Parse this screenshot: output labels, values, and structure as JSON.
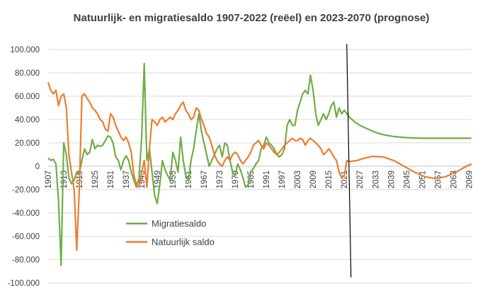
{
  "chart_data": {
    "type": "line",
    "title": "Natuurlijk- en migratiesaldo  1907-2022 (reëel) en 2023-2070 (prognose)",
    "xlabel": "",
    "ylabel": "",
    "ylim": [
      -100000,
      100000
    ],
    "y_ticks": [
      "100.000",
      "80.000",
      "60.000",
      "40.000",
      "20.000",
      "0",
      "-20.000",
      "-40.000",
      "-60.000",
      "-80.000",
      "-100.000"
    ],
    "x_ticks": [
      "1907",
      "1913",
      "1919",
      "1925",
      "1931",
      "1937",
      "1943",
      "1949",
      "1955",
      "1961",
      "1967",
      "1973",
      "1979",
      "1985",
      "1991",
      "1997",
      "2003",
      "2009",
      "2015",
      "2021",
      "2027",
      "2033",
      "2039",
      "2045",
      "2051",
      "2057",
      "2063",
      "2069"
    ],
    "x_range": [
      1907,
      2070
    ],
    "forecast_divider_year": 2022.5,
    "legend_position": "lower-left",
    "grid": "horizontal",
    "series": [
      {
        "name": "Migratiesaldo",
        "color": "#70ad47",
        "points": [
          [
            1907,
            7000
          ],
          [
            1908,
            5000
          ],
          [
            1909,
            6000
          ],
          [
            1910,
            2000
          ],
          [
            1911,
            -30000
          ],
          [
            1912,
            -85000
          ],
          [
            1913,
            20000
          ],
          [
            1914,
            10000
          ],
          [
            1915,
            -10000
          ],
          [
            1916,
            -15000
          ],
          [
            1917,
            -12000
          ],
          [
            1918,
            -5000
          ],
          [
            1919,
            -6000
          ],
          [
            1920,
            5000
          ],
          [
            1921,
            15000
          ],
          [
            1922,
            10000
          ],
          [
            1923,
            12000
          ],
          [
            1924,
            23000
          ],
          [
            1925,
            15000
          ],
          [
            1926,
            18000
          ],
          [
            1927,
            17000
          ],
          [
            1928,
            18000
          ],
          [
            1929,
            22000
          ],
          [
            1930,
            26000
          ],
          [
            1931,
            25000
          ],
          [
            1932,
            20000
          ],
          [
            1933,
            8000
          ],
          [
            1934,
            5000
          ],
          [
            1935,
            -3000
          ],
          [
            1936,
            5000
          ],
          [
            1937,
            9000
          ],
          [
            1938,
            5000
          ],
          [
            1939,
            -5000
          ],
          [
            1940,
            -12000
          ],
          [
            1941,
            -18000
          ],
          [
            1942,
            -10000
          ],
          [
            1943,
            25000
          ],
          [
            1944,
            88000
          ],
          [
            1945,
            5000
          ],
          [
            1946,
            15000
          ],
          [
            1947,
            -5000
          ],
          [
            1948,
            -25000
          ],
          [
            1949,
            -32000
          ],
          [
            1950,
            -15000
          ],
          [
            1951,
            5000
          ],
          [
            1952,
            -3000
          ],
          [
            1953,
            -8000
          ],
          [
            1954,
            -12000
          ],
          [
            1955,
            12000
          ],
          [
            1956,
            5000
          ],
          [
            1957,
            -5000
          ],
          [
            1958,
            25000
          ],
          [
            1959,
            5000
          ],
          [
            1960,
            -8000
          ],
          [
            1961,
            -12000
          ],
          [
            1962,
            5000
          ],
          [
            1963,
            15000
          ],
          [
            1964,
            30000
          ],
          [
            1965,
            45000
          ],
          [
            1966,
            30000
          ],
          [
            1967,
            20000
          ],
          [
            1968,
            10000
          ],
          [
            1969,
            0
          ],
          [
            1970,
            5000
          ],
          [
            1971,
            10000
          ],
          [
            1972,
            15000
          ],
          [
            1973,
            18000
          ],
          [
            1974,
            8000
          ],
          [
            1975,
            20000
          ],
          [
            1976,
            18000
          ],
          [
            1977,
            5000
          ],
          [
            1978,
            -5000
          ],
          [
            1979,
            -8000
          ],
          [
            1980,
            2000
          ],
          [
            1981,
            -3000
          ],
          [
            1982,
            -10000
          ],
          [
            1983,
            -18000
          ],
          [
            1984,
            -16000
          ],
          [
            1985,
            -5000
          ],
          [
            1986,
            -2000
          ],
          [
            1987,
            2000
          ],
          [
            1988,
            5000
          ],
          [
            1989,
            15000
          ],
          [
            1990,
            18000
          ],
          [
            1991,
            25000
          ],
          [
            1992,
            20000
          ],
          [
            1993,
            18000
          ],
          [
            1994,
            15000
          ],
          [
            1995,
            10000
          ],
          [
            1996,
            8000
          ],
          [
            1997,
            10000
          ],
          [
            1998,
            15000
          ],
          [
            1999,
            35000
          ],
          [
            2000,
            40000
          ],
          [
            2001,
            35000
          ],
          [
            2002,
            35000
          ],
          [
            2003,
            48000
          ],
          [
            2004,
            55000
          ],
          [
            2005,
            62000
          ],
          [
            2006,
            65000
          ],
          [
            2007,
            62000
          ],
          [
            2008,
            78000
          ],
          [
            2009,
            65000
          ],
          [
            2010,
            45000
          ],
          [
            2011,
            35000
          ],
          [
            2012,
            40000
          ],
          [
            2013,
            45000
          ],
          [
            2014,
            40000
          ],
          [
            2015,
            45000
          ],
          [
            2016,
            52000
          ],
          [
            2017,
            55000
          ],
          [
            2018,
            42000
          ],
          [
            2019,
            50000
          ],
          [
            2020,
            45000
          ],
          [
            2021,
            48000
          ],
          [
            2022,
            45000
          ],
          [
            2023,
            42000
          ],
          [
            2025,
            38000
          ],
          [
            2027,
            35000
          ],
          [
            2030,
            32000
          ],
          [
            2033,
            29000
          ],
          [
            2036,
            27000
          ],
          [
            2040,
            25500
          ],
          [
            2045,
            24500
          ],
          [
            2050,
            24000
          ],
          [
            2060,
            24000
          ],
          [
            2070,
            24000
          ]
        ]
      },
      {
        "name": "Natuurlijk saldo",
        "color": "#ed7d31",
        "points": [
          [
            1907,
            72000
          ],
          [
            1908,
            65000
          ],
          [
            1909,
            62000
          ],
          [
            1910,
            65000
          ],
          [
            1911,
            52000
          ],
          [
            1912,
            60000
          ],
          [
            1913,
            62000
          ],
          [
            1914,
            50000
          ],
          [
            1915,
            10000
          ],
          [
            1916,
            -5000
          ],
          [
            1917,
            -20000
          ],
          [
            1918,
            -72000
          ],
          [
            1919,
            -20000
          ],
          [
            1920,
            60000
          ],
          [
            1921,
            62000
          ],
          [
            1922,
            58000
          ],
          [
            1923,
            55000
          ],
          [
            1924,
            50000
          ],
          [
            1925,
            48000
          ],
          [
            1926,
            45000
          ],
          [
            1927,
            40000
          ],
          [
            1928,
            38000
          ],
          [
            1929,
            32000
          ],
          [
            1930,
            30000
          ],
          [
            1931,
            45000
          ],
          [
            1932,
            42000
          ],
          [
            1933,
            35000
          ],
          [
            1934,
            30000
          ],
          [
            1935,
            25000
          ],
          [
            1936,
            22000
          ],
          [
            1937,
            25000
          ],
          [
            1938,
            20000
          ],
          [
            1939,
            12000
          ],
          [
            1940,
            -8000
          ],
          [
            1941,
            -15000
          ],
          [
            1942,
            -18000
          ],
          [
            1943,
            -5000
          ],
          [
            1944,
            5000
          ],
          [
            1945,
            -18000
          ],
          [
            1946,
            15000
          ],
          [
            1947,
            40000
          ],
          [
            1948,
            38000
          ],
          [
            1949,
            35000
          ],
          [
            1950,
            40000
          ],
          [
            1951,
            42000
          ],
          [
            1952,
            38000
          ],
          [
            1953,
            40000
          ],
          [
            1954,
            42000
          ],
          [
            1955,
            40000
          ],
          [
            1956,
            45000
          ],
          [
            1957,
            48000
          ],
          [
            1958,
            52000
          ],
          [
            1959,
            55000
          ],
          [
            1960,
            48000
          ],
          [
            1961,
            45000
          ],
          [
            1962,
            40000
          ],
          [
            1963,
            42000
          ],
          [
            1964,
            50000
          ],
          [
            1965,
            48000
          ],
          [
            1966,
            40000
          ],
          [
            1967,
            35000
          ],
          [
            1968,
            28000
          ],
          [
            1969,
            25000
          ],
          [
            1970,
            18000
          ],
          [
            1971,
            10000
          ],
          [
            1972,
            5000
          ],
          [
            1973,
            2000
          ],
          [
            1974,
            0
          ],
          [
            1975,
            5000
          ],
          [
            1976,
            8000
          ],
          [
            1977,
            5000
          ],
          [
            1978,
            10000
          ],
          [
            1979,
            12000
          ],
          [
            1980,
            10000
          ],
          [
            1981,
            5000
          ],
          [
            1982,
            2000
          ],
          [
            1983,
            5000
          ],
          [
            1984,
            8000
          ],
          [
            1985,
            12000
          ],
          [
            1986,
            18000
          ],
          [
            1987,
            20000
          ],
          [
            1988,
            22000
          ],
          [
            1989,
            18000
          ],
          [
            1990,
            15000
          ],
          [
            1991,
            20000
          ],
          [
            1992,
            18000
          ],
          [
            1993,
            15000
          ],
          [
            1994,
            12000
          ],
          [
            1995,
            10000
          ],
          [
            1996,
            12000
          ],
          [
            1997,
            15000
          ],
          [
            1998,
            18000
          ],
          [
            1999,
            20000
          ],
          [
            2000,
            22000
          ],
          [
            2001,
            24000
          ],
          [
            2002,
            22000
          ],
          [
            2003,
            22000
          ],
          [
            2004,
            24000
          ],
          [
            2005,
            23000
          ],
          [
            2006,
            18000
          ],
          [
            2007,
            22000
          ],
          [
            2008,
            24000
          ],
          [
            2009,
            22000
          ],
          [
            2010,
            20000
          ],
          [
            2011,
            18000
          ],
          [
            2012,
            15000
          ],
          [
            2013,
            10000
          ],
          [
            2014,
            12000
          ],
          [
            2015,
            15000
          ],
          [
            2016,
            12000
          ],
          [
            2017,
            8000
          ],
          [
            2018,
            5000
          ],
          [
            2019,
            -5000
          ],
          [
            2020,
            -10000
          ],
          [
            2021,
            -8000
          ],
          [
            2022,
            5000
          ],
          [
            2023,
            4000
          ],
          [
            2026,
            5000
          ],
          [
            2029,
            7000
          ],
          [
            2032,
            8500
          ],
          [
            2036,
            8000
          ],
          [
            2040,
            5000
          ],
          [
            2044,
            0
          ],
          [
            2048,
            -5000
          ],
          [
            2052,
            -9000
          ],
          [
            2056,
            -10500
          ],
          [
            2060,
            -9000
          ],
          [
            2064,
            -5000
          ],
          [
            2068,
            0
          ],
          [
            2070,
            2000
          ]
        ]
      }
    ]
  }
}
